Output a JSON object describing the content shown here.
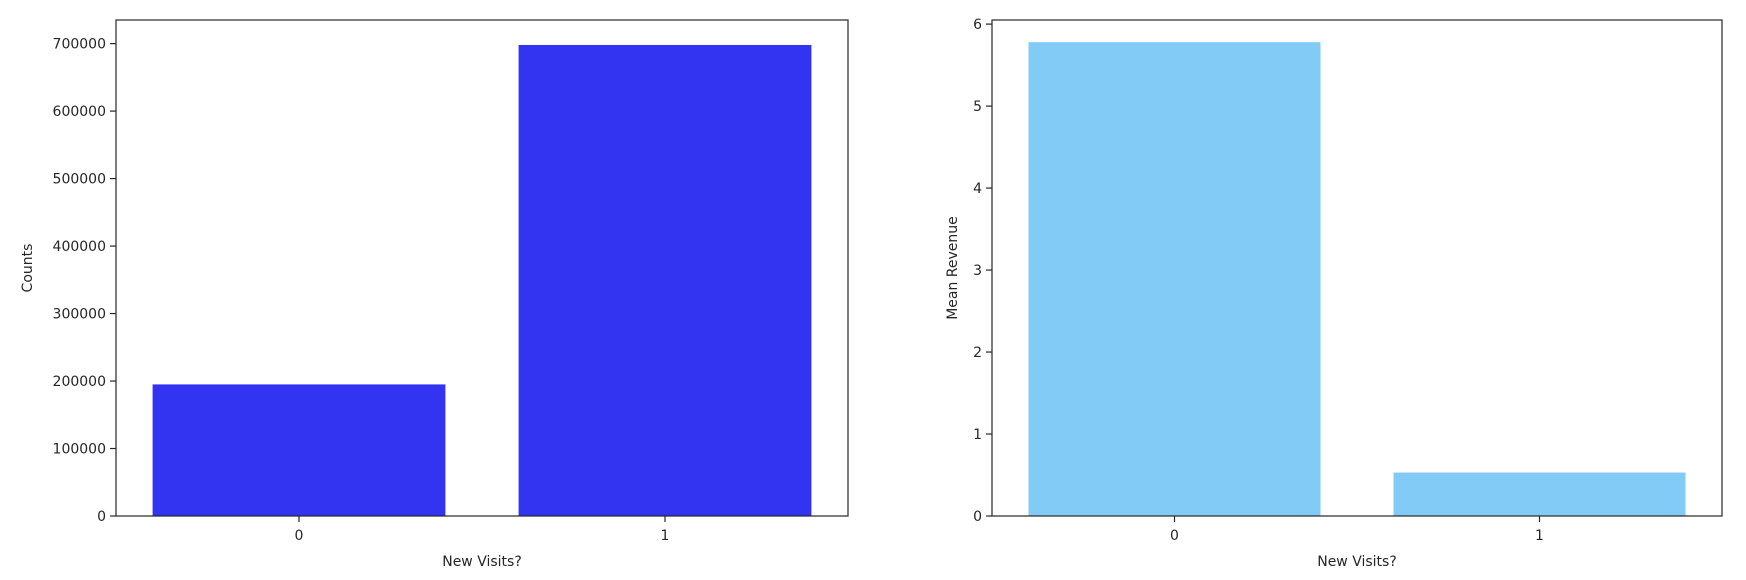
{
  "chart_data": [
    {
      "type": "bar",
      "categories": [
        "0",
        "1"
      ],
      "values": [
        195000,
        698000
      ],
      "xlabel": "New Visits?",
      "ylabel": "Counts",
      "ylim": [
        0,
        735000
      ],
      "yticks": [
        0,
        100000,
        200000,
        300000,
        400000,
        500000,
        600000,
        700000
      ],
      "ytick_labels": [
        "0",
        "100000",
        "200000",
        "300000",
        "400000",
        "500000",
        "600000",
        "700000"
      ],
      "color": "#3333f2",
      "grid": false,
      "legend": "none"
    },
    {
      "type": "bar",
      "categories": [
        "0",
        "1"
      ],
      "values": [
        5.78,
        0.53
      ],
      "xlabel": "New Visits?",
      "ylabel": "Mean Revenue",
      "ylim": [
        0,
        6.05
      ],
      "yticks": [
        0,
        1,
        2,
        3,
        4,
        5,
        6
      ],
      "ytick_labels": [
        "0",
        "1",
        "2",
        "3",
        "4",
        "5",
        "6"
      ],
      "color": "#83cbf7",
      "grid": false,
      "legend": "none"
    }
  ]
}
